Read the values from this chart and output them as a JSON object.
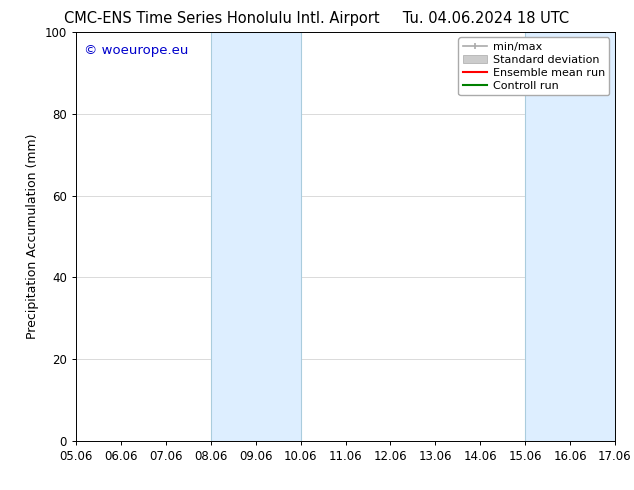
{
  "title_left": "CMC-ENS Time Series Honolulu Intl. Airport",
  "title_right": "Tu. 04.06.2024 18 UTC",
  "ylabel": "Precipitation Accumulation (mm)",
  "watermark": "© woeurope.eu",
  "watermark_color": "#0000cc",
  "xlim_min": 5.06,
  "xlim_max": 17.06,
  "ylim_min": 0,
  "ylim_max": 100,
  "xtick_labels": [
    "05.06",
    "06.06",
    "07.06",
    "08.06",
    "09.06",
    "10.06",
    "11.06",
    "12.06",
    "13.06",
    "14.06",
    "15.06",
    "16.06",
    "17.06"
  ],
  "xtick_values": [
    5.06,
    6.06,
    7.06,
    8.06,
    9.06,
    10.06,
    11.06,
    12.06,
    13.06,
    14.06,
    15.06,
    16.06,
    17.06
  ],
  "ytick_values": [
    0,
    20,
    40,
    60,
    80,
    100
  ],
  "shaded_bands": [
    {
      "x_start": 8.06,
      "x_end": 10.06
    },
    {
      "x_start": 15.06,
      "x_end": 17.06
    }
  ],
  "shade_color": "#ddeeff",
  "shade_edge_color": "#aaccdd",
  "legend_items": [
    {
      "label": "min/max",
      "color": "#aaaaaa",
      "linewidth": 1.2,
      "linestyle": "-"
    },
    {
      "label": "Standard deviation",
      "color": "#cccccc",
      "linewidth": 7,
      "linestyle": "-"
    },
    {
      "label": "Ensemble mean run",
      "color": "#ff0000",
      "linewidth": 1.5,
      "linestyle": "-"
    },
    {
      "label": "Controll run",
      "color": "#008000",
      "linewidth": 1.5,
      "linestyle": "-"
    }
  ],
  "background_color": "#ffffff",
  "grid_color": "#cccccc",
  "font_size_title": 10.5,
  "font_size_axis": 9,
  "font_size_tick": 8.5,
  "font_size_legend": 8,
  "font_size_watermark": 9.5
}
